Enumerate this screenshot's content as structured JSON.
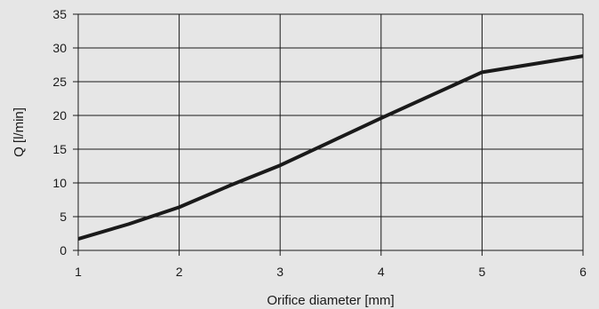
{
  "chart_data": {
    "type": "line",
    "title": "",
    "xlabel": "Orifice diameter  [mm]",
    "ylabel": "Q [l/min]",
    "xlim": [
      1,
      6
    ],
    "ylim": [
      0,
      35
    ],
    "x_ticks": [
      1,
      2,
      3,
      4,
      5,
      6
    ],
    "y_ticks": [
      0,
      5,
      10,
      15,
      20,
      25,
      30,
      35
    ],
    "grid": true,
    "legend": "none",
    "series": [
      {
        "x": [
          1,
          1.5,
          2,
          2.5,
          3,
          3.5,
          4,
          4.5,
          5,
          5.5,
          6
        ],
        "y": [
          1.7,
          3.9,
          6.4,
          9.6,
          12.6,
          16.1,
          19.6,
          23.0,
          26.4,
          27.6,
          28.8
        ],
        "color": "#1a1a1a"
      }
    ],
    "colors": {
      "background": "#e6e6e6",
      "grid": "#1a1a1a",
      "line": "#1a1a1a"
    }
  }
}
